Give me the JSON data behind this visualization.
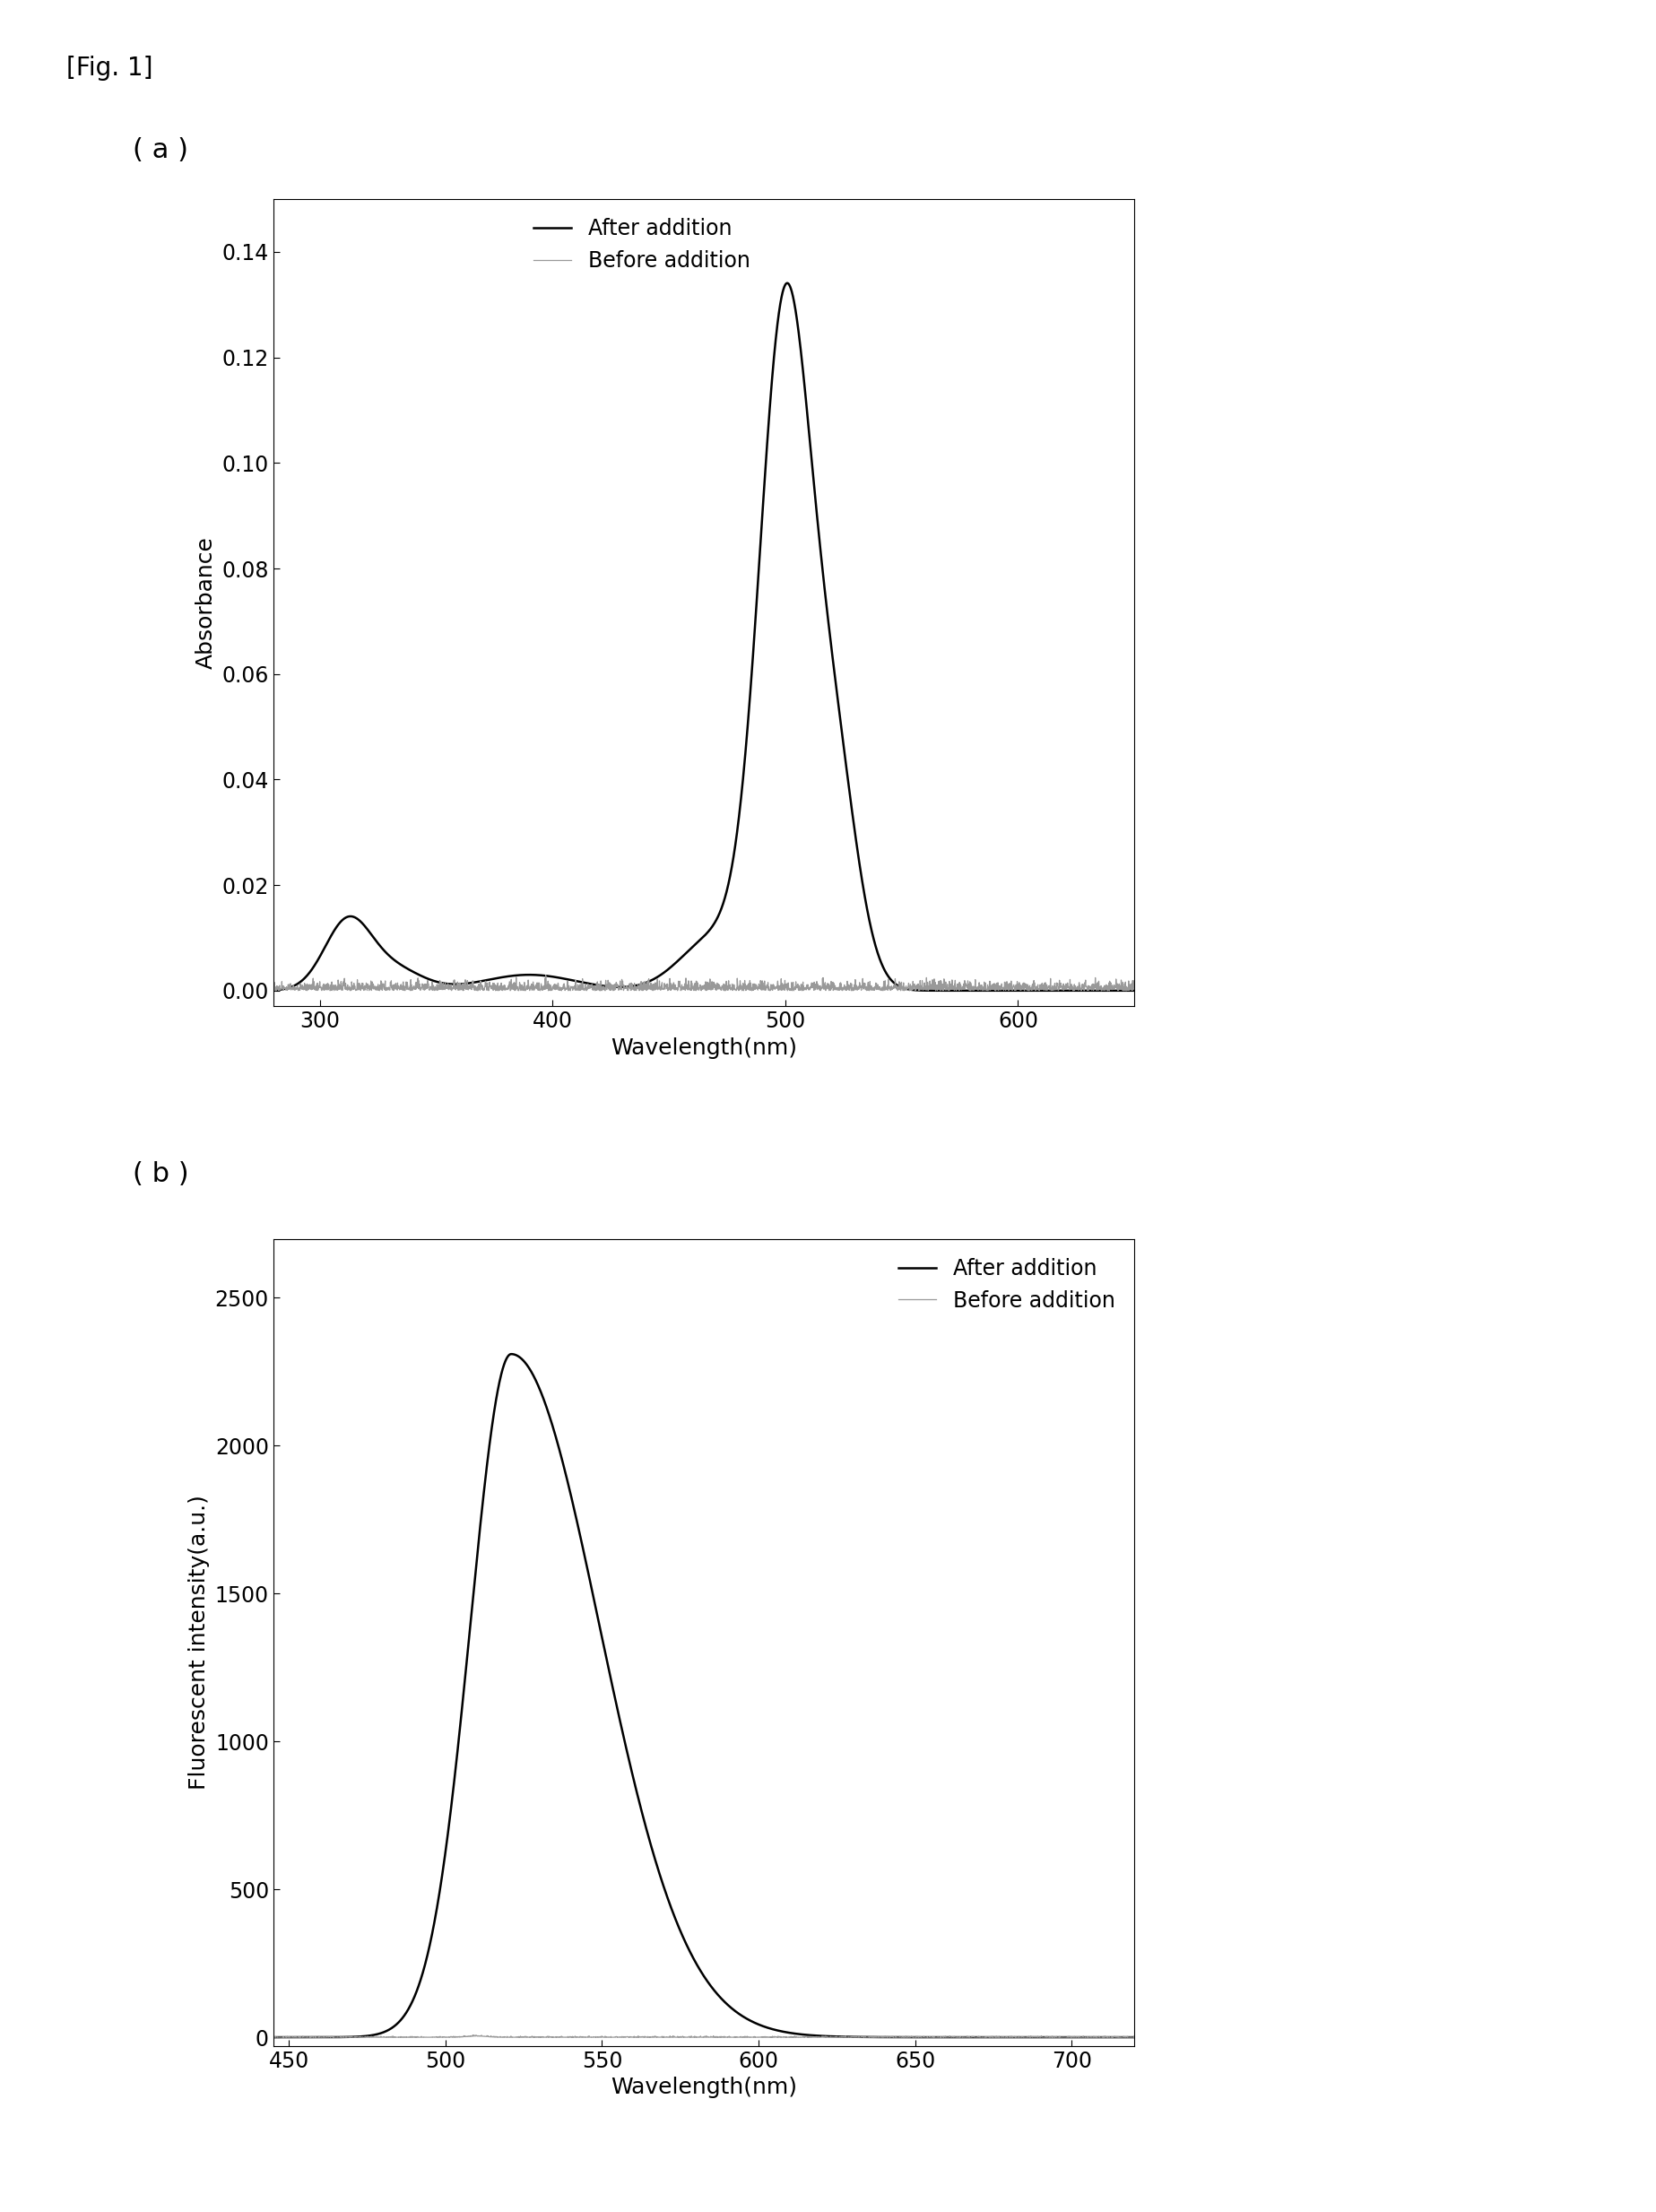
{
  "fig_label": "[Fig. 1]",
  "panel_a_label": "( a )",
  "panel_b_label": "( b )",
  "panel_a": {
    "xlabel": "Wavelength(nm)",
    "ylabel": "Absorbance",
    "xlim": [
      280,
      650
    ],
    "ylim": [
      -0.003,
      0.15
    ],
    "xticks": [
      300,
      400,
      500,
      600
    ],
    "yticks": [
      0,
      0.02,
      0.04,
      0.06,
      0.08,
      0.1,
      0.12,
      0.14
    ],
    "legend_after": "After addition",
    "legend_before": "Before addition",
    "after_color": "#000000",
    "before_color": "#999999",
    "after_linewidth": 1.8,
    "before_linewidth": 0.9
  },
  "panel_b": {
    "xlabel": "Wavelength(nm)",
    "ylabel": "Fluorescent intensity(a.u.)",
    "xlim": [
      445,
      720
    ],
    "ylim": [
      -30,
      2700
    ],
    "xticks": [
      450,
      500,
      550,
      600,
      650,
      700
    ],
    "yticks": [
      0,
      500,
      1000,
      1500,
      2000,
      2500
    ],
    "legend_after": "After addition",
    "legend_before": "Before addition",
    "after_color": "#000000",
    "before_color": "#999999",
    "after_linewidth": 1.8,
    "before_linewidth": 0.9
  },
  "background_color": "#ffffff",
  "fig_label_fontsize": 20,
  "panel_label_fontsize": 22,
  "axis_label_fontsize": 18,
  "tick_fontsize": 17,
  "legend_fontsize": 17
}
